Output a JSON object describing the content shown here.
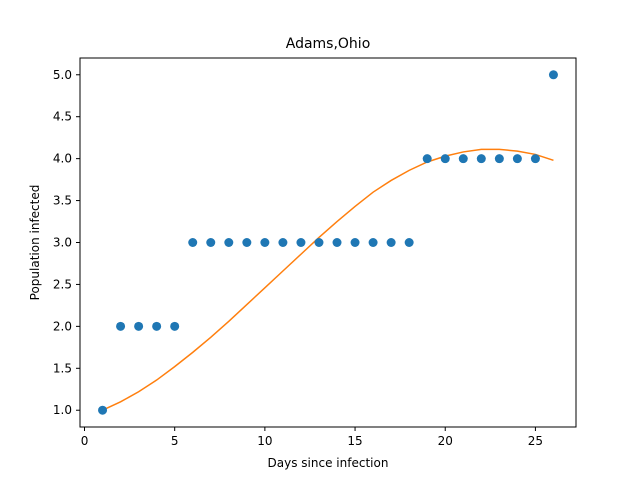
{
  "chart_data": {
    "type": "scatter",
    "title": "Adams,Ohio",
    "xlabel": "Days since infection",
    "ylabel": "Population infected",
    "xlim": [
      -0.25,
      27.25
    ],
    "ylim": [
      0.8,
      5.2
    ],
    "x_ticks": [
      0,
      5,
      10,
      15,
      20,
      25
    ],
    "x_tick_labels": [
      "0",
      "5",
      "10",
      "15",
      "20",
      "25"
    ],
    "y_ticks": [
      1.0,
      1.5,
      2.0,
      2.5,
      3.0,
      3.5,
      4.0,
      4.5,
      5.0
    ],
    "y_tick_labels": [
      "1.0",
      "1.5",
      "2.0",
      "2.5",
      "3.0",
      "3.5",
      "4.0",
      "4.5",
      "5.0"
    ],
    "grid": false,
    "series": [
      {
        "kind": "scatter",
        "color": "#1f77b4",
        "points": [
          {
            "x": 1,
            "y": 1
          },
          {
            "x": 2,
            "y": 2
          },
          {
            "x": 3,
            "y": 2
          },
          {
            "x": 4,
            "y": 2
          },
          {
            "x": 5,
            "y": 2
          },
          {
            "x": 6,
            "y": 3
          },
          {
            "x": 7,
            "y": 3
          },
          {
            "x": 8,
            "y": 3
          },
          {
            "x": 9,
            "y": 3
          },
          {
            "x": 10,
            "y": 3
          },
          {
            "x": 11,
            "y": 3
          },
          {
            "x": 12,
            "y": 3
          },
          {
            "x": 13,
            "y": 3
          },
          {
            "x": 14,
            "y": 3
          },
          {
            "x": 15,
            "y": 3
          },
          {
            "x": 16,
            "y": 3
          },
          {
            "x": 17,
            "y": 3
          },
          {
            "x": 18,
            "y": 3
          },
          {
            "x": 19,
            "y": 4
          },
          {
            "x": 20,
            "y": 4
          },
          {
            "x": 21,
            "y": 4
          },
          {
            "x": 22,
            "y": 4
          },
          {
            "x": 23,
            "y": 4
          },
          {
            "x": 24,
            "y": 4
          },
          {
            "x": 25,
            "y": 4
          },
          {
            "x": 26,
            "y": 5
          }
        ]
      },
      {
        "kind": "line",
        "color": "#ff7f0e",
        "points": [
          {
            "x": 1,
            "y": 1.0
          },
          {
            "x": 2,
            "y": 1.1
          },
          {
            "x": 3,
            "y": 1.22
          },
          {
            "x": 4,
            "y": 1.36
          },
          {
            "x": 5,
            "y": 1.52
          },
          {
            "x": 6,
            "y": 1.69
          },
          {
            "x": 7,
            "y": 1.87
          },
          {
            "x": 8,
            "y": 2.06
          },
          {
            "x": 9,
            "y": 2.26
          },
          {
            "x": 10,
            "y": 2.46
          },
          {
            "x": 11,
            "y": 2.66
          },
          {
            "x": 12,
            "y": 2.86
          },
          {
            "x": 13,
            "y": 3.06
          },
          {
            "x": 14,
            "y": 3.25
          },
          {
            "x": 15,
            "y": 3.43
          },
          {
            "x": 16,
            "y": 3.6
          },
          {
            "x": 17,
            "y": 3.74
          },
          {
            "x": 18,
            "y": 3.86
          },
          {
            "x": 19,
            "y": 3.96
          },
          {
            "x": 20,
            "y": 4.03
          },
          {
            "x": 21,
            "y": 4.08
          },
          {
            "x": 22,
            "y": 4.11
          },
          {
            "x": 23,
            "y": 4.11
          },
          {
            "x": 24,
            "y": 4.09
          },
          {
            "x": 25,
            "y": 4.05
          },
          {
            "x": 26,
            "y": 3.98
          }
        ]
      }
    ]
  }
}
